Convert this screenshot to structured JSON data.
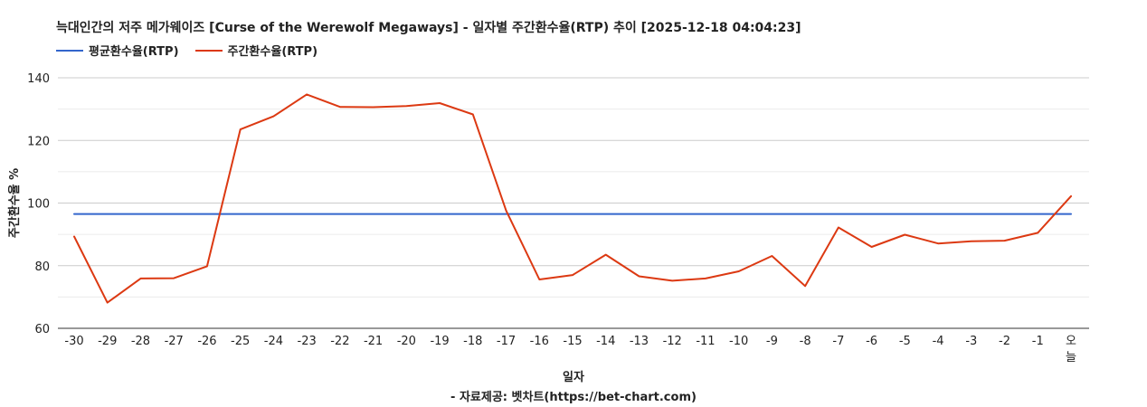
{
  "title": "늑대인간의 저주 메가웨이즈 [Curse of the Werewolf Megaways] - 일자별 주간환수율(RTP) 추이 [2025-12-18 04:04:23]",
  "source": "- 자료제공: 벳차트(https://bet-chart.com)",
  "colors": {
    "avg": "#3366cc",
    "weekly": "#dc3912",
    "grid": "#cccccc",
    "minorGrid": "#ebebeb",
    "baseline": "#333333"
  },
  "chart_data": {
    "type": "line",
    "title": "늑대인간의 저주 메가웨이즈 [Curse of the Werewolf Megaways] - 일자별 주간환수율(RTP) 추이 [2025-12-18 04:04:23]",
    "xlabel": "일자",
    "ylabel": "주간환수율 %",
    "ylim": [
      60,
      140
    ],
    "yticks": [
      60,
      80,
      100,
      120,
      140
    ],
    "grid": true,
    "legend": "top-left",
    "categories": [
      "-30",
      "-29",
      "-28",
      "-27",
      "-26",
      "-25",
      "-24",
      "-23",
      "-22",
      "-21",
      "-20",
      "-19",
      "-18",
      "-17",
      "-16",
      "-15",
      "-14",
      "-13",
      "-12",
      "-11",
      "-10",
      "-9",
      "-8",
      "-7",
      "-6",
      "-5",
      "-4",
      "-3",
      "-2",
      "-1",
      "오늘"
    ],
    "series": [
      {
        "name": "평균환수율(RTP)",
        "color": "#3366cc",
        "values": [
          96.5,
          96.5,
          96.5,
          96.5,
          96.5,
          96.5,
          96.5,
          96.5,
          96.5,
          96.5,
          96.5,
          96.5,
          96.5,
          96.5,
          96.5,
          96.5,
          96.5,
          96.5,
          96.5,
          96.5,
          96.5,
          96.5,
          96.5,
          96.5,
          96.5,
          96.5,
          96.5,
          96.5,
          96.5,
          96.5,
          96.5
        ]
      },
      {
        "name": "주간환수율(RTP)",
        "color": "#dc3912",
        "values": [
          89.3,
          68.2,
          75.9,
          76.0,
          79.8,
          123.5,
          127.7,
          134.7,
          130.7,
          130.6,
          131.0,
          131.9,
          128.3,
          97.6,
          75.6,
          77.0,
          83.5,
          76.6,
          75.2,
          75.9,
          78.2,
          83.1,
          73.5,
          92.2,
          86.0,
          89.9,
          87.1,
          87.8,
          88.0,
          90.5,
          102.2
        ]
      }
    ]
  }
}
